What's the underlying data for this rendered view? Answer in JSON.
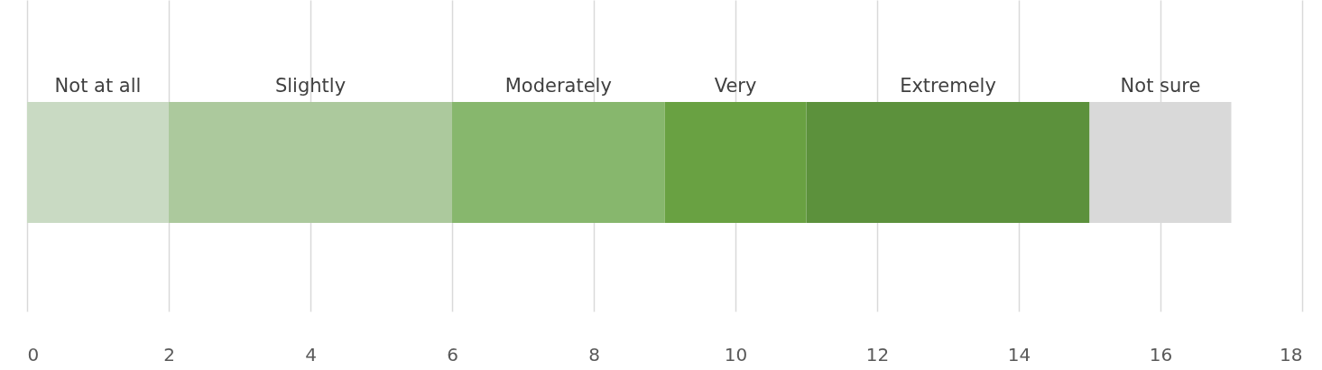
{
  "chart_data": {
    "type": "bar",
    "orientation": "horizontal",
    "stacked": true,
    "categories": [
      null
    ],
    "series": [
      {
        "name": "Not at all",
        "color": "#c9dac3",
        "values": [
          2
        ]
      },
      {
        "name": "Slightly",
        "color": "#acc99d",
        "values": [
          4
        ]
      },
      {
        "name": "Moderately",
        "color": "#87b76d",
        "values": [
          3
        ]
      },
      {
        "name": "Very",
        "color": "#69a142",
        "values": [
          2
        ]
      },
      {
        "name": "Extremely",
        "color": "#5c913c",
        "values": [
          4
        ]
      },
      {
        "name": "Not sure",
        "color": "#d9d9d9",
        "values": [
          2
        ]
      }
    ],
    "xlim": [
      0,
      18
    ],
    "xticks": [
      0,
      2,
      4,
      6,
      8,
      10,
      12,
      14,
      16,
      18
    ],
    "grid": "x",
    "tick_labels": "x"
  }
}
